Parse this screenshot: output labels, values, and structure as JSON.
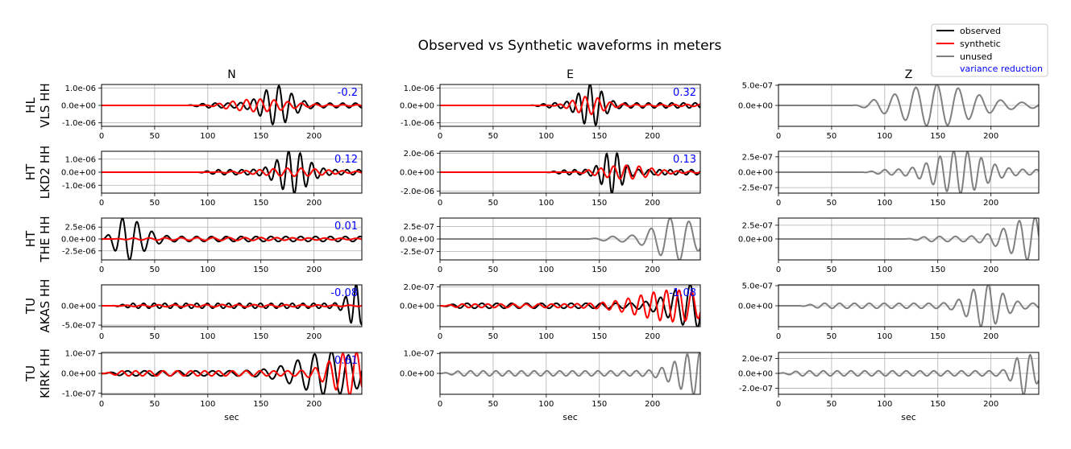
{
  "figure": {
    "title": "Observed vs Synthetic waveforms in meters"
  },
  "chart_data": {
    "type": "line",
    "title": "Observed vs Synthetic waveforms in meters",
    "xlabel": "sec",
    "xlim": [
      0,
      245
    ],
    "xticks": [
      "0",
      "50",
      "100",
      "150",
      "200"
    ],
    "grid": true,
    "legend": {
      "placement": "top-right",
      "entries": [
        {
          "label": "observed",
          "color": "#000000"
        },
        {
          "label": "synthetic",
          "color": "#ff0000"
        },
        {
          "label": "unused",
          "color": "#808080"
        },
        {
          "label": "variance reduction",
          "color": "#0000ff"
        }
      ]
    },
    "columns": [
      "N",
      "E",
      "Z"
    ],
    "rows": [
      {
        "station_line1": "HL",
        "station_line2": "VLS HH",
        "panels": [
          {
            "component": "N",
            "used": true,
            "ylim": [
              -1.2e-06,
              1.2e-06
            ],
            "yticks": [
              "1.0e-06",
              "0.0e+00",
              "-1.0e-06"
            ],
            "ytick_values": [
              1e-06,
              0,
              -1e-06
            ],
            "variance_reduction": "-0.2",
            "observed": {
              "start": 80,
              "amp": 1.1e-06,
              "center": 165,
              "width": 18,
              "period": 12
            },
            "synthetic": {
              "start": 95,
              "amp": 3.5e-07,
              "center": 148,
              "width": 35,
              "period": 13
            }
          },
          {
            "component": "E",
            "used": true,
            "ylim": [
              -1.2e-06,
              1.2e-06
            ],
            "yticks": [
              "1.0e-06",
              "0.0e+00",
              "-1.0e-06"
            ],
            "ytick_values": [
              1e-06,
              0,
              -1e-06
            ],
            "variance_reduction": "0.32",
            "observed": {
              "start": 85,
              "amp": 1.2e-06,
              "center": 142,
              "width": 14,
              "period": 11
            },
            "synthetic": {
              "start": 100,
              "amp": 5e-07,
              "center": 140,
              "width": 18,
              "period": 12
            }
          },
          {
            "component": "Z",
            "used": false,
            "ylim": [
              -5.2e-07,
              5.2e-07
            ],
            "yticks": [
              "5.0e-07",
              "0.0e+00"
            ],
            "ytick_values": [
              5e-07,
              0
            ],
            "variance_reduction": "",
            "observed": {
              "start": 70,
              "amp": 5e-07,
              "center": 148,
              "width": 45,
              "period": 20
            }
          }
        ]
      },
      {
        "station_line1": "HT",
        "station_line2": "LKD2 HH",
        "panels": [
          {
            "component": "N",
            "used": true,
            "ylim": [
              -1.6e-06,
              1.6e-06
            ],
            "yticks": [
              "1.0e-06",
              "0.0e+00",
              "-1.0e-06"
            ],
            "ytick_values": [
              1e-06,
              0,
              -1e-06
            ],
            "variance_reduction": "0.12",
            "observed": {
              "start": 90,
              "amp": 1.6e-06,
              "center": 180,
              "width": 18,
              "period": 11
            },
            "synthetic": {
              "start": 100,
              "amp": 3e-07,
              "center": 180,
              "width": 40,
              "period": 13
            }
          },
          {
            "component": "E",
            "used": true,
            "ylim": [
              -2.2e-06,
              2.2e-06
            ],
            "yticks": [
              "2.0e-06",
              "0.0e+00",
              "-2.0e-06"
            ],
            "ytick_values": [
              2e-06,
              0,
              -2e-06
            ],
            "variance_reduction": "0.13",
            "observed": {
              "start": 100,
              "amp": 2.2e-06,
              "center": 162,
              "width": 12,
              "period": 10
            },
            "synthetic": {
              "start": 120,
              "amp": 7e-07,
              "center": 175,
              "width": 30,
              "period": 12
            }
          },
          {
            "component": "Z",
            "used": false,
            "ylim": [
              -3.4e-07,
              3.4e-07
            ],
            "yticks": [
              "2.5e-07",
              "0.0e+00",
              "-2.5e-07"
            ],
            "ytick_values": [
              2.5e-07,
              0,
              -2.5e-07
            ],
            "variance_reduction": "",
            "observed": {
              "start": 80,
              "amp": 3.4e-07,
              "center": 170,
              "width": 30,
              "period": 13
            }
          }
        ]
      },
      {
        "station_line1": "HT",
        "station_line2": "THE HH",
        "panels": [
          {
            "component": "N",
            "used": true,
            "ylim": [
              -4.4e-06,
              4.4e-06
            ],
            "yticks": [
              "2.5e-06",
              "0.0e+00",
              "-2.5e-06"
            ],
            "ytick_values": [
              2.5e-06,
              0,
              -2.5e-06
            ],
            "variance_reduction": "0.01",
            "observed": {
              "start": 0,
              "amp": 4.4e-06,
              "center": 22,
              "width": 22,
              "period": 14
            },
            "synthetic": {
              "start": 10,
              "amp": 3e-07,
              "center": 120,
              "width": 120,
              "period": 15
            }
          },
          {
            "component": "E",
            "used": false,
            "ylim": [
              -4.2e-07,
              4.2e-07
            ],
            "yticks": [
              "2.5e-07",
              "0.0e+00",
              "-2.5e-07"
            ],
            "ytick_values": [
              2.5e-07,
              0,
              -2.5e-07
            ],
            "variance_reduction": "",
            "observed": {
              "start": 140,
              "amp": 4.2e-07,
              "center": 222,
              "width": 25,
              "period": 18
            }
          },
          {
            "component": "Z",
            "used": false,
            "ylim": [
              -3.8e-07,
              3.8e-07
            ],
            "yticks": [
              "2.5e-07",
              "0.0e+00"
            ],
            "ytick_values": [
              2.5e-07,
              0
            ],
            "variance_reduction": "",
            "observed": {
              "start": 120,
              "amp": 3.8e-07,
              "center": 240,
              "width": 30,
              "period": 15
            }
          }
        ]
      },
      {
        "station_line1": "TU",
        "station_line2": "AKAS HH",
        "panels": [
          {
            "component": "N",
            "used": true,
            "ylim": [
              -5.4e-07,
              5.4e-07
            ],
            "yticks": [
              "0.0e+00",
              "-5.0e-07"
            ],
            "ytick_values": [
              0,
              -5e-07
            ],
            "variance_reduction": "-0.08",
            "observed": {
              "start": 10,
              "amp": 5.4e-07,
              "center": 240,
              "width": 10,
              "period": 10
            },
            "synthetic": {
              "start": 10,
              "amp": 3e-08,
              "center": 120,
              "width": 120,
              "period": 15
            }
          },
          {
            "component": "E",
            "used": true,
            "ylim": [
              -2.2e-07,
              2.2e-07
            ],
            "yticks": [
              "2.0e-07",
              "0.0e+00"
            ],
            "ytick_values": [
              2e-07,
              0
            ],
            "variance_reduction": "-1.08",
            "observed": {
              "start": 0,
              "amp": 2.2e-07,
              "center": 240,
              "width": 30,
              "period": 14
            },
            "synthetic": {
              "start": 0,
              "amp": 1.6e-07,
              "center": 220,
              "width": 45,
              "period": 12
            }
          },
          {
            "component": "Z",
            "used": false,
            "ylim": [
              -5.2e-07,
              5.2e-07
            ],
            "yticks": [
              "5.0e-07",
              "0.0e+00"
            ],
            "ytick_values": [
              5e-07,
              0
            ],
            "variance_reduction": "",
            "observed": {
              "start": 20,
              "amp": 5.2e-07,
              "center": 195,
              "width": 20,
              "period": 14
            }
          }
        ]
      },
      {
        "station_line1": "TU",
        "station_line2": "KIRK HH",
        "panels": [
          {
            "component": "N",
            "used": true,
            "ylim": [
              -1.05e-07,
              1.05e-07
            ],
            "yticks": [
              "1.0e-07",
              "0.0e+00",
              "-1.0e-07"
            ],
            "ytick_values": [
              1e-07,
              0,
              -1e-07
            ],
            "variance_reduction": "0.61",
            "observed": {
              "start": 0,
              "amp": 1.05e-07,
              "center": 215,
              "width": 40,
              "period": 16
            },
            "synthetic": {
              "start": 0,
              "amp": 1.05e-07,
              "center": 235,
              "width": 25,
              "period": 13
            }
          },
          {
            "component": "E",
            "used": false,
            "ylim": [
              -1.05e-07,
              1.05e-07
            ],
            "yticks": [
              "1.0e-07",
              "0.0e+00"
            ],
            "ytick_values": [
              1e-07,
              0
            ],
            "variance_reduction": "",
            "observed": {
              "start": 0,
              "amp": 1.05e-07,
              "center": 242,
              "width": 25,
              "period": 12
            }
          },
          {
            "component": "Z",
            "used": false,
            "ylim": [
              -2.8e-07,
              2.8e-07
            ],
            "yticks": [
              "2.0e-07",
              "0.0e+00",
              "-2.0e-07"
            ],
            "ytick_values": [
              2e-07,
              0,
              -2e-07
            ],
            "variance_reduction": "",
            "observed": {
              "start": 0,
              "amp": 2.8e-07,
              "center": 232,
              "width": 12,
              "period": 13
            }
          }
        ]
      }
    ]
  }
}
